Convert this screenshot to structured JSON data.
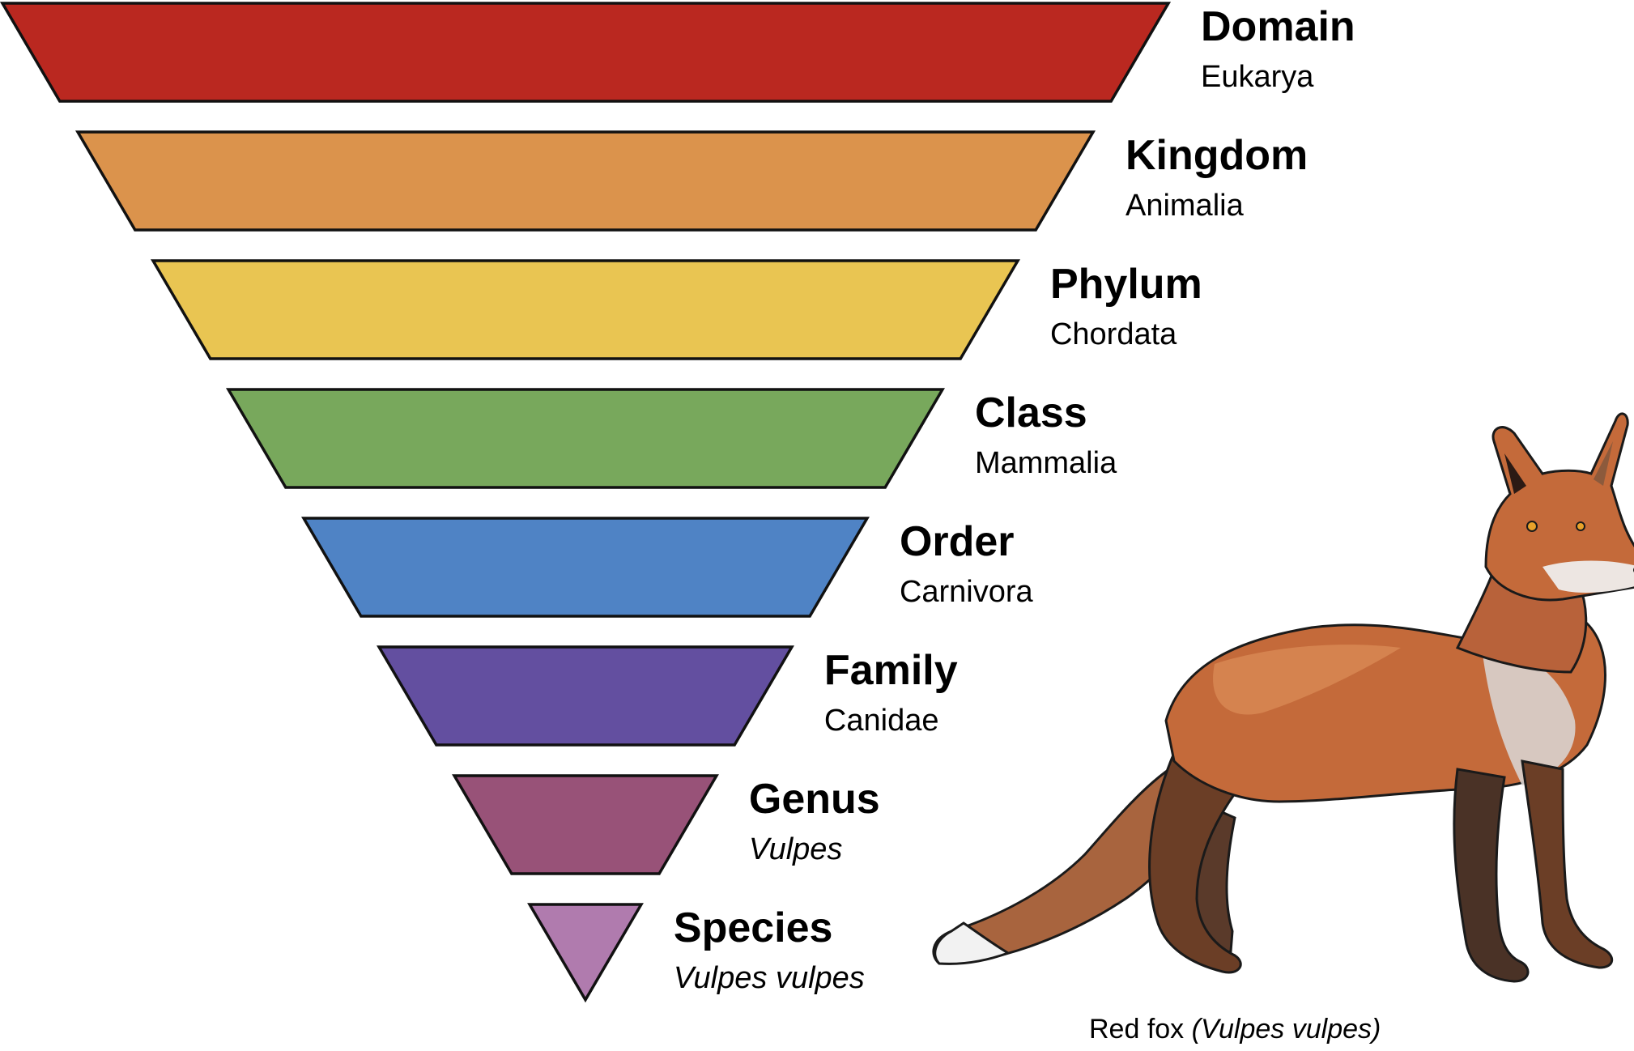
{
  "levels": [
    {
      "rank": "Domain",
      "taxon": "Eukarya",
      "italic": false,
      "color": "#BA2820"
    },
    {
      "rank": "Kingdom",
      "taxon": "Animalia",
      "italic": false,
      "color": "#DB934C"
    },
    {
      "rank": "Phylum",
      "taxon": "Chordata",
      "italic": false,
      "color": "#E9C552"
    },
    {
      "rank": "Class",
      "taxon": "Mammalia",
      "italic": false,
      "color": "#78A85C"
    },
    {
      "rank": "Order",
      "taxon": "Carnivora",
      "italic": false,
      "color": "#4F83C5"
    },
    {
      "rank": "Family",
      "taxon": "Canidae",
      "italic": false,
      "color": "#634FA0"
    },
    {
      "rank": "Genus",
      "taxon": "Vulpes",
      "italic": true,
      "color": "#985278"
    },
    {
      "rank": "Species",
      "taxon": "Vulpes vulpes",
      "italic": true,
      "color": "#B07BAE"
    }
  ],
  "fox": {
    "caption_plain": "Red fox ",
    "caption_italic": "(Vulpes vulpes)",
    "illustration": "red-fox-illustration"
  }
}
